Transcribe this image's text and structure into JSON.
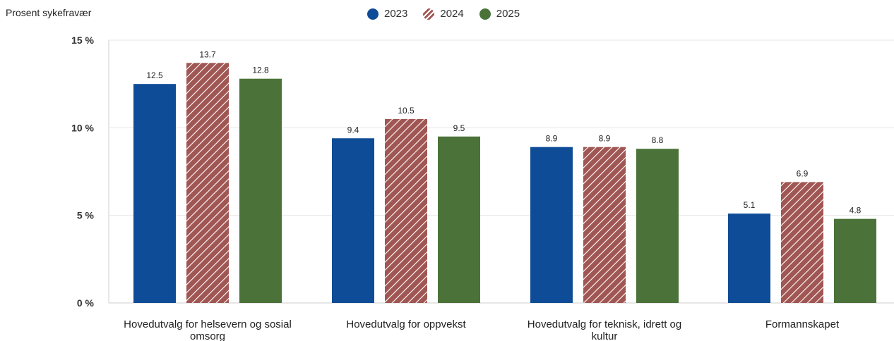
{
  "chart_data": {
    "type": "bar",
    "title": "Prosent sykefravær",
    "categories": [
      [
        "Hovedutvalg for helsevern og sosial",
        "omsorg"
      ],
      [
        "Hovedutvalg for oppvekst"
      ],
      [
        "Hovedutvalg for teknisk, idrett og",
        "kultur"
      ],
      [
        "Formannskapet"
      ]
    ],
    "series": [
      {
        "name": "2023",
        "values": [
          12.5,
          9.4,
          8.9,
          5.1
        ],
        "color": "#0f4c97",
        "pattern": "solid"
      },
      {
        "name": "2024",
        "values": [
          13.7,
          10.5,
          8.9,
          6.9
        ],
        "color": "#a05653",
        "pattern": "hatched"
      },
      {
        "name": "2025",
        "values": [
          12.8,
          9.5,
          8.8,
          4.8
        ],
        "color": "#4b7339",
        "pattern": "solid"
      }
    ],
    "ylim": [
      0,
      15
    ],
    "yticks": [
      "0 %",
      "5 %",
      "10 %",
      "15 %"
    ],
    "ytick_values": [
      0,
      5,
      10,
      15
    ],
    "grid": true,
    "legend_position": "top-center"
  }
}
